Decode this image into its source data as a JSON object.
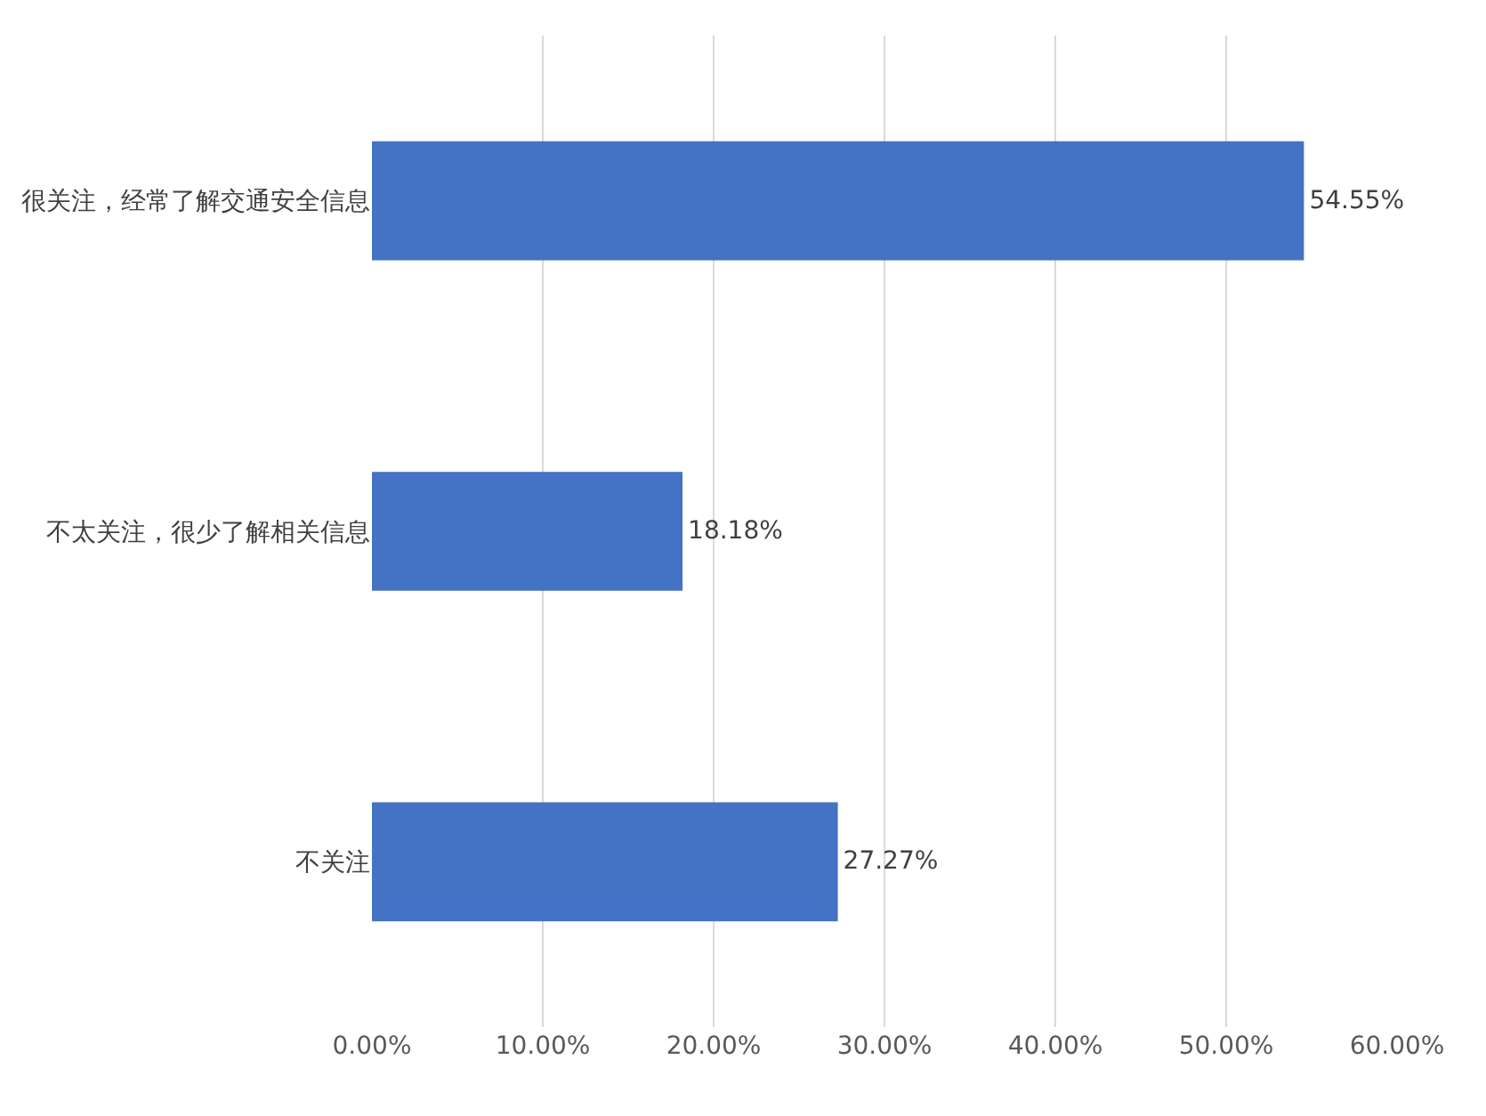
{
  "chart_data": {
    "type": "bar",
    "orientation": "horizontal",
    "categories": [
      "很关注，经常了解交通安全信息",
      "不太关注，很少了解相关信息",
      "不关注"
    ],
    "values": [
      54.55,
      18.18,
      27.27
    ],
    "value_labels": [
      "54.55%",
      "18.18%",
      "27.27%"
    ],
    "color": "#4472c4",
    "xlim": [
      0,
      60
    ],
    "xticks": [
      {
        "value": 0,
        "label": "0.00%"
      },
      {
        "value": 10,
        "label": "10.00%"
      },
      {
        "value": 20,
        "label": "20.00%"
      },
      {
        "value": 30,
        "label": "30.00%"
      },
      {
        "value": 40,
        "label": "40.00%"
      },
      {
        "value": 50,
        "label": "50.00%"
      },
      {
        "value": 60,
        "label": "60.00%"
      }
    ],
    "grid": "x"
  }
}
